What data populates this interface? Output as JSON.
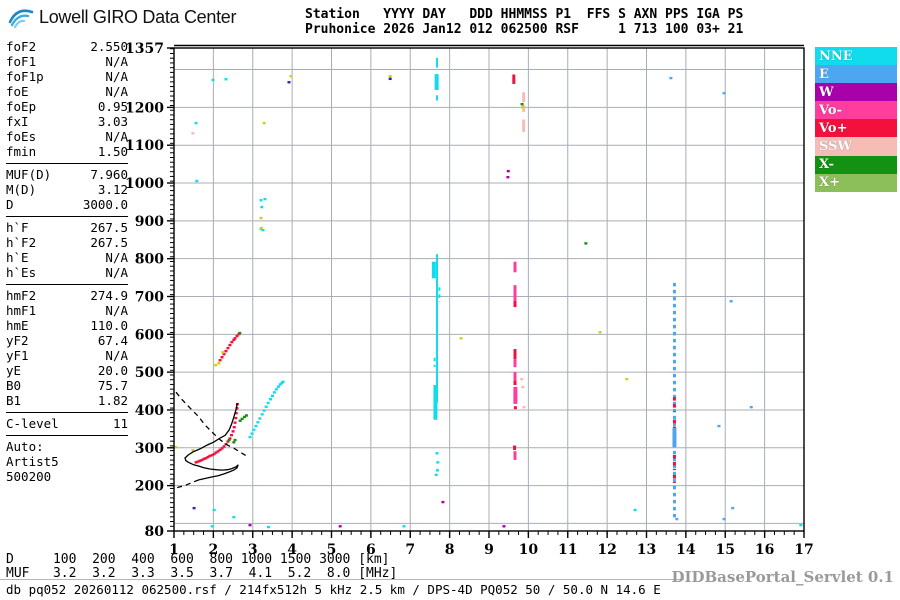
{
  "header": {
    "brand": "Lowell GIRO Data Center",
    "station_line1": "Station   YYYY DAY   DDD HHMMSS P1  FFS S AXN PPS IGA PS",
    "station_line2": "Pruhonice 2026 Jan12 012 062500 RSF     1 713 100 03+ 21"
  },
  "params": {
    "groups": [
      [
        {
          "label": "foF2",
          "value": "2.550"
        },
        {
          "label": "foF1",
          "value": "N/A"
        },
        {
          "label": "foF1p",
          "value": "N/A"
        },
        {
          "label": "foE",
          "value": "N/A"
        },
        {
          "label": "foEp",
          "value": "0.95"
        },
        {
          "label": "fxI",
          "value": "3.03"
        },
        {
          "label": "foEs",
          "value": "N/A"
        },
        {
          "label": "fmin",
          "value": "1.50"
        }
      ],
      [
        {
          "label": "MUF(D)",
          "value": "7.960"
        },
        {
          "label": "M(D)",
          "value": "3.12"
        },
        {
          "label": "D",
          "value": "3000.0"
        }
      ],
      [
        {
          "label": "h`F",
          "value": "267.5"
        },
        {
          "label": "h`F2",
          "value": "267.5"
        },
        {
          "label": "h`E",
          "value": "N/A"
        },
        {
          "label": "h`Es",
          "value": "N/A"
        }
      ],
      [
        {
          "label": "hmF2",
          "value": "274.9"
        },
        {
          "label": "hmF1",
          "value": "N/A"
        },
        {
          "label": "hmE",
          "value": "110.0"
        },
        {
          "label": "yF2",
          "value": "67.4"
        },
        {
          "label": "yF1",
          "value": "N/A"
        },
        {
          "label": "yE",
          "value": "20.0"
        },
        {
          "label": "B0",
          "value": "75.7"
        },
        {
          "label": "B1",
          "value": "1.82"
        }
      ],
      [
        {
          "label": "C-level",
          "value": "11"
        }
      ]
    ],
    "auto_lines": [
      "Auto:",
      "Artist5",
      "500200"
    ]
  },
  "legend": {
    "items": [
      {
        "label": "NNE",
        "color": "#10DCEE"
      },
      {
        "label": "E",
        "color": "#4FA6F0"
      },
      {
        "label": "W",
        "color": "#AA00AA"
      },
      {
        "label": "Vo-",
        "color": "#FF3D9E"
      },
      {
        "label": "Vo+",
        "color": "#F3103C"
      },
      {
        "label": "SSW",
        "color": "#F6BCB6"
      },
      {
        "label": "X-",
        "color": "#129112"
      },
      {
        "label": "X+",
        "color": "#8CBE5A"
      }
    ]
  },
  "footer": {
    "d_line": "D     100  200  400  600  800 1000 1500 3000 [km]",
    "muf_line": "MUF   3.2  3.2  3.3  3.5  3.7  4.1  5.2  8.0 [MHz]",
    "status_line": "db pq052 20260112 062500.rsf / 214fx512h 5 kHz 2.5 km / DPS-4D PQ052 50 / 50.0 N 14.6 E",
    "servlet_label": "DIDBasePortal_Servlet 0.1"
  },
  "chart_data": {
    "type": "scatter",
    "title": "",
    "xlabel": "",
    "ylabel": "",
    "xlim": [
      1,
      17
    ],
    "ylim": [
      80,
      1357
    ],
    "x_ticks": [
      1,
      2,
      3,
      4,
      5,
      6,
      7,
      8,
      9,
      10,
      11,
      12,
      13,
      14,
      15,
      16,
      17
    ],
    "y_tick_labels": [
      1357,
      1200,
      1100,
      1000,
      900,
      800,
      700,
      600,
      500,
      400,
      300,
      200,
      80
    ],
    "grid": {
      "x_step_mhz": 1,
      "y_step_km": 100,
      "color": "#a8aeb6"
    },
    "series": [
      {
        "name": "F-trace-O-mode-Vo+",
        "color": "#F3103C",
        "points": [
          [
            1.56,
            262
          ],
          [
            1.61,
            264
          ],
          [
            1.66,
            266
          ],
          [
            1.71,
            268
          ],
          [
            1.76,
            271
          ],
          [
            1.81,
            273
          ],
          [
            1.86,
            276
          ],
          [
            1.91,
            279
          ],
          [
            1.97,
            281
          ],
          [
            2.02,
            284
          ],
          [
            2.07,
            288
          ],
          [
            2.12,
            291
          ],
          [
            2.17,
            295
          ],
          [
            2.22,
            299
          ],
          [
            2.27,
            304
          ],
          [
            2.32,
            310
          ],
          [
            2.37,
            317
          ],
          [
            2.42,
            325
          ],
          [
            2.46,
            334
          ],
          [
            2.5,
            344
          ],
          [
            2.53,
            355
          ],
          [
            2.55,
            367
          ],
          [
            2.57,
            379
          ],
          [
            2.58,
            392
          ],
          [
            2.6,
            405
          ],
          [
            2.61,
            416
          ]
        ]
      },
      {
        "name": "F-trace-X-mode-NNE",
        "color": "#10DCEE",
        "points": [
          [
            2.93,
            329
          ],
          [
            2.98,
            338
          ],
          [
            3.03,
            348
          ],
          [
            3.08,
            358
          ],
          [
            3.13,
            368
          ],
          [
            3.18,
            378
          ],
          [
            3.24,
            389
          ],
          [
            3.29,
            399
          ],
          [
            3.34,
            409
          ],
          [
            3.39,
            419
          ],
          [
            3.45,
            429
          ],
          [
            3.5,
            438
          ],
          [
            3.55,
            447
          ],
          [
            3.6,
            455
          ],
          [
            3.65,
            462
          ],
          [
            3.7,
            468
          ],
          [
            3.74,
            472
          ],
          [
            3.77,
            475
          ]
        ]
      },
      {
        "name": "second-hop-F-Vo+",
        "color": "#F3103C",
        "points": [
          [
            2.17,
            532
          ],
          [
            2.22,
            540
          ],
          [
            2.27,
            548
          ],
          [
            2.32,
            556
          ],
          [
            2.37,
            564
          ],
          [
            2.42,
            572
          ],
          [
            2.47,
            580
          ],
          [
            2.52,
            586
          ],
          [
            2.55,
            590
          ],
          [
            2.6,
            596
          ],
          [
            2.65,
            601
          ]
        ]
      },
      {
        "name": "NNE-echoes",
        "color": "#10DCEE",
        "points": [
          [
            1.99,
            1273
          ],
          [
            2.32,
            1275
          ],
          [
            1.56,
            1159
          ],
          [
            1.58,
            1006
          ],
          [
            3.21,
            955
          ],
          [
            3.31,
            958
          ],
          [
            3.23,
            937
          ],
          [
            3.26,
            876
          ],
          [
            3.21,
            879
          ],
          [
            2.02,
            136
          ],
          [
            2.52,
            117
          ],
          [
            1.97,
            93
          ],
          [
            3.4,
            91
          ],
          [
            6.84,
            93
          ],
          [
            12.71,
            136
          ],
          [
            16.92,
            96
          ],
          [
            7.68,
            286
          ],
          [
            7.7,
            262
          ],
          [
            7.69,
            241
          ],
          [
            7.66,
            229
          ]
        ]
      },
      {
        "name": "E-echoes",
        "color": "#4FA6F0",
        "points": [
          [
            13.62,
            1278
          ],
          [
            14.97,
            1238
          ],
          [
            15.15,
            688
          ],
          [
            15.66,
            408
          ],
          [
            14.84,
            358
          ],
          [
            15.19,
            141
          ],
          [
            14.97,
            112
          ],
          [
            13.77,
            112
          ]
        ]
      },
      {
        "name": "W-echoes",
        "color": "#AA00AA",
        "points": [
          [
            2.93,
            96
          ],
          [
            5.22,
            93
          ],
          [
            9.38,
            93
          ],
          [
            7.83,
            157
          ],
          [
            9.49,
            1032
          ],
          [
            9.48,
            1016
          ]
        ]
      },
      {
        "name": "SSW-echoes",
        "color": "#F6BCB6",
        "points": [
          [
            1.48,
            1132
          ],
          [
            9.83,
            482
          ],
          [
            9.86,
            461
          ],
          [
            9.89,
            408
          ]
        ]
      },
      {
        "name": "X-minus-echoes",
        "color": "#129112",
        "points": [
          [
            2.55,
            321
          ],
          [
            2.4,
            321
          ],
          [
            2.52,
            315
          ],
          [
            2.68,
            372
          ],
          [
            2.73,
            377
          ],
          [
            2.79,
            382
          ],
          [
            2.84,
            386
          ],
          [
            2.67,
            604
          ],
          [
            11.46,
            841
          ],
          [
            9.84,
            1209
          ]
        ]
      },
      {
        "name": "yellow-echoes",
        "color": "#CFCF1A",
        "points": [
          [
            1.05,
            302
          ],
          [
            1.48,
            294
          ],
          [
            2.06,
            519
          ],
          [
            2.14,
            524
          ],
          [
            2.24,
            553
          ],
          [
            3.21,
            908
          ],
          [
            3.22,
            881
          ],
          [
            3.29,
            1159
          ],
          [
            3.97,
            1283
          ],
          [
            6.49,
            1283
          ],
          [
            8.29,
            590
          ],
          [
            9.86,
            1201
          ],
          [
            11.82,
            606
          ],
          [
            12.5,
            482
          ]
        ]
      },
      {
        "name": "dark-blue-echoes",
        "color": "#2525C8",
        "points": [
          [
            1.51,
            141
          ],
          [
            3.92,
            1267
          ],
          [
            6.49,
            1276
          ]
        ]
      }
    ],
    "stripes": [
      {
        "f": 13.71,
        "h": [
          112,
          736
        ],
        "color": "#4FA6F0",
        "w": 3,
        "dash": true
      },
      {
        "f": 13.71,
        "h": [
          302,
          352
        ],
        "color": "#4FA6F0",
        "w": 4,
        "dash": false
      },
      {
        "f": 13.71,
        "h": [
          395,
          434
        ],
        "color": "#F3103C",
        "w": 3,
        "dash": true
      },
      {
        "f": 13.71,
        "h": [
          352,
          374
        ],
        "color": "#F3103C",
        "w": 3,
        "dash": true
      },
      {
        "f": 13.71,
        "h": [
          241,
          281
        ],
        "color": "#F3103C",
        "w": 3,
        "dash": true
      },
      {
        "f": 13.71,
        "h": [
          207,
          228
        ],
        "color": "#F3103C",
        "w": 3,
        "dash": true
      },
      {
        "f": 7.68,
        "h": [
          1305,
          1331
        ],
        "color": "#10DCEE",
        "w": 2,
        "dash": false
      },
      {
        "f": 7.67,
        "h": [
          1246,
          1288
        ],
        "color": "#10DCEE",
        "w": 4,
        "dash": false
      },
      {
        "f": 7.68,
        "h": [
          1218,
          1232
        ],
        "color": "#10DCEE",
        "w": 2,
        "dash": false
      },
      {
        "f": 7.6,
        "h": [
          748,
          792
        ],
        "color": "#10DCEE",
        "w": 4,
        "dash": false
      },
      {
        "f": 7.68,
        "h": [
          420,
          812
        ],
        "color": "#10DCEE",
        "w": 2,
        "dash": false
      },
      {
        "f": 7.64,
        "h": [
          374,
          466
        ],
        "color": "#10DCEE",
        "w": 4,
        "dash": false
      },
      {
        "f": 7.74,
        "h": [
          686,
          724
        ],
        "color": "#10DCEE",
        "w": 2,
        "dash": true
      },
      {
        "f": 7.62,
        "h": [
          514,
          538
        ],
        "color": "#10DCEE",
        "w": 2,
        "dash": true
      },
      {
        "f": 9.63,
        "h": [
          1262,
          1287
        ],
        "color": "#F3103C",
        "w": 3,
        "dash": false
      },
      {
        "f": 9.66,
        "h": [
          764,
          792
        ],
        "color": "#FF3D9E",
        "w": 3,
        "dash": false
      },
      {
        "f": 9.66,
        "h": [
          688,
          730
        ],
        "color": "#FF3D9E",
        "w": 3,
        "dash": false
      },
      {
        "f": 9.66,
        "h": [
          672,
          688
        ],
        "color": "#F3103C",
        "w": 3,
        "dash": false
      },
      {
        "f": 9.66,
        "h": [
          534,
          561
        ],
        "color": "#F3103C",
        "w": 3,
        "dash": false
      },
      {
        "f": 9.66,
        "h": [
          513,
          534
        ],
        "color": "#FF3D9E",
        "w": 3,
        "dash": false
      },
      {
        "f": 9.66,
        "h": [
          470,
          500
        ],
        "color": "#FF3D9E",
        "w": 3,
        "dash": false
      },
      {
        "f": 9.66,
        "h": [
          466,
          477
        ],
        "color": "#F3103C",
        "w": 3,
        "dash": false
      },
      {
        "f": 9.67,
        "h": [
          416,
          461
        ],
        "color": "#FF3D9E",
        "w": 4,
        "dash": false
      },
      {
        "f": 9.67,
        "h": [
          402,
          410
        ],
        "color": "#F3103C",
        "w": 3,
        "dash": false
      },
      {
        "f": 9.65,
        "h": [
          294,
          306
        ],
        "color": "#F3103C",
        "w": 3,
        "dash": false
      },
      {
        "f": 9.66,
        "h": [
          268,
          291
        ],
        "color": "#FF3D9E",
        "w": 3,
        "dash": false
      },
      {
        "f": 9.88,
        "h": [
          1214,
          1240
        ],
        "color": "#F6BCB6",
        "w": 3,
        "dash": false
      },
      {
        "f": 9.88,
        "h": [
          1188,
          1206
        ],
        "color": "#F6BCB6",
        "w": 3,
        "dash": false
      },
      {
        "f": 9.88,
        "h": [
          1135,
          1168
        ],
        "color": "#F6BCB6",
        "w": 3,
        "dash": false
      }
    ],
    "curves": [
      {
        "name": "true-height-profile",
        "style": "solid",
        "points": [
          [
            2.61,
            418
          ],
          [
            2.57,
            399
          ],
          [
            2.52,
            381
          ],
          [
            2.46,
            362
          ],
          [
            2.4,
            347
          ],
          [
            2.3,
            333
          ],
          [
            2.17,
            326
          ],
          [
            2.01,
            315
          ],
          [
            1.84,
            307
          ],
          [
            1.66,
            297
          ],
          [
            1.48,
            289
          ],
          [
            1.36,
            281
          ],
          [
            1.28,
            273
          ],
          [
            1.3,
            266
          ],
          [
            1.36,
            262
          ],
          [
            1.5,
            255
          ],
          [
            1.61,
            252
          ],
          [
            1.76,
            247
          ],
          [
            1.91,
            244
          ],
          [
            2.07,
            242
          ],
          [
            2.22,
            241
          ],
          [
            2.36,
            242
          ],
          [
            2.47,
            245
          ],
          [
            2.58,
            250
          ],
          [
            2.63,
            255
          ],
          [
            2.6,
            247
          ],
          [
            2.52,
            241
          ],
          [
            2.4,
            236
          ],
          [
            2.27,
            231
          ],
          [
            2.12,
            226
          ],
          [
            1.97,
            223
          ],
          [
            1.8,
            219
          ],
          [
            1.63,
            215
          ]
        ]
      },
      {
        "name": "muf-transmission-curve",
        "style": "dashed",
        "points": [
          [
            1.05,
            447
          ],
          [
            1.2,
            428
          ],
          [
            1.41,
            405
          ],
          [
            1.62,
            383
          ],
          [
            1.79,
            360
          ],
          [
            1.99,
            339
          ],
          [
            2.17,
            321
          ],
          [
            2.36,
            307
          ],
          [
            2.55,
            297
          ],
          [
            2.72,
            286
          ],
          [
            2.85,
            278
          ]
        ]
      },
      {
        "name": "profile-tail",
        "style": "dashed",
        "points": [
          [
            1.63,
            215
          ],
          [
            1.45,
            208
          ],
          [
            1.28,
            200
          ],
          [
            1.12,
            196
          ],
          [
            1.0,
            191
          ]
        ]
      }
    ]
  }
}
